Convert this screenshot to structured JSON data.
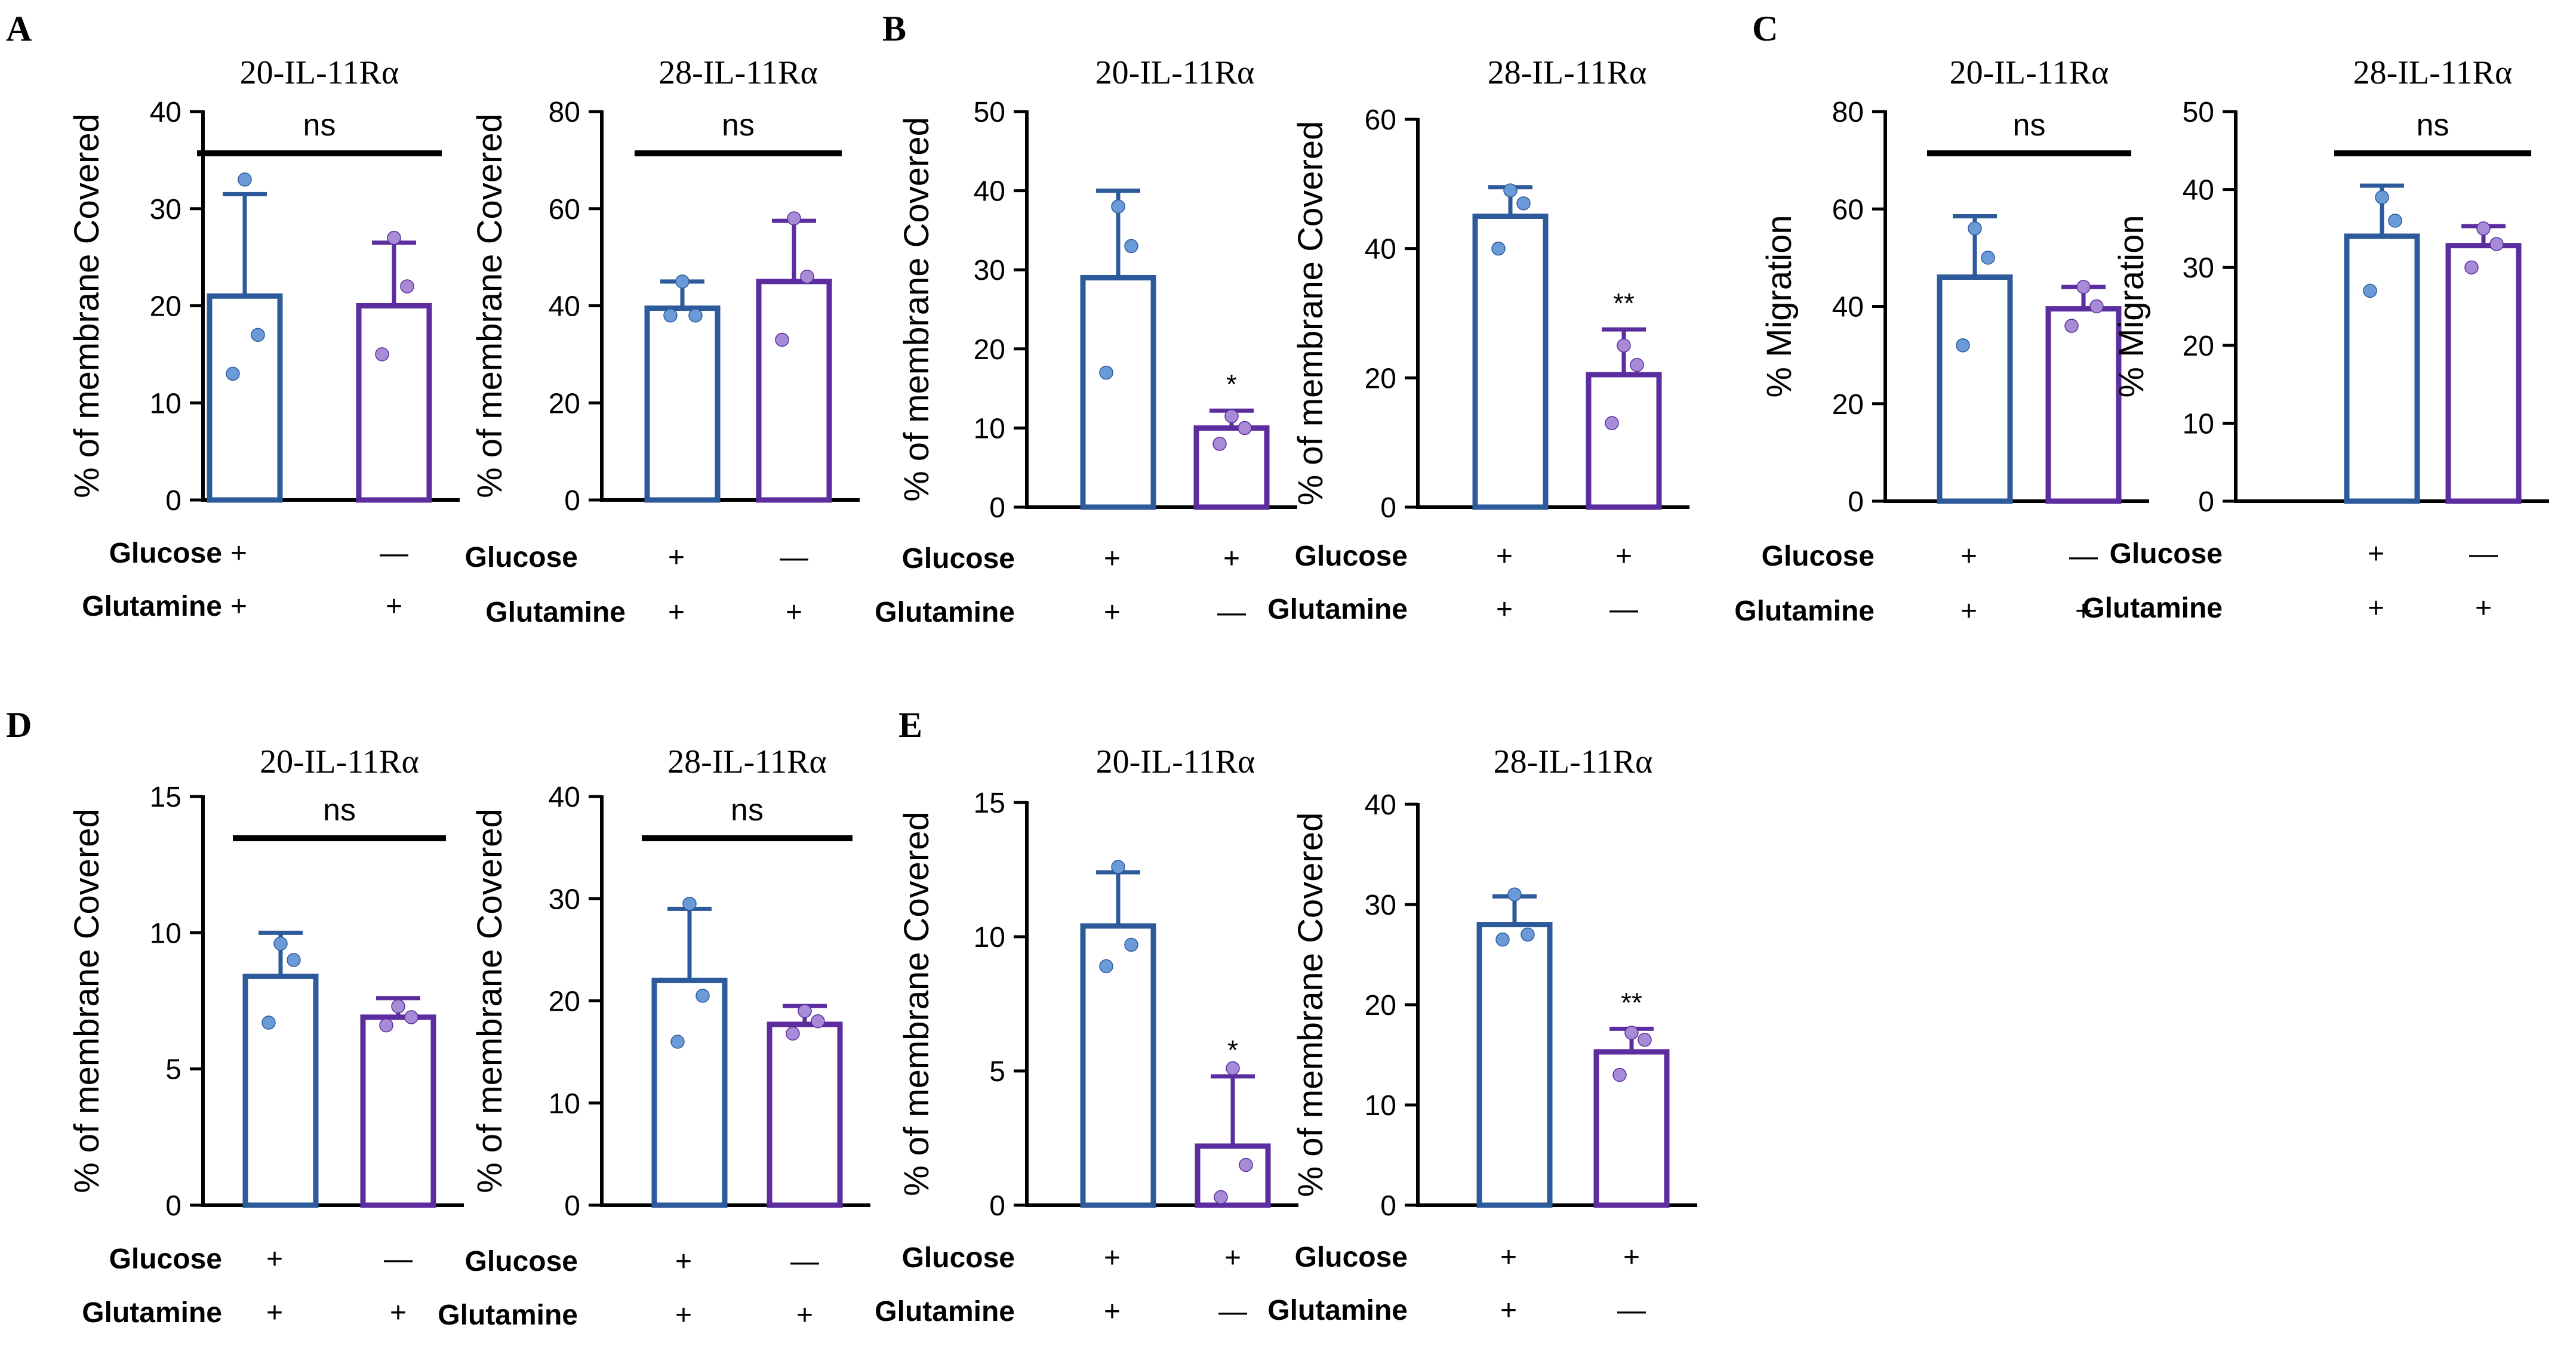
{
  "figure": {
    "colors": {
      "blue": "#2d5a9a",
      "purple": "#5b2d9e",
      "blue_dot": "#6a9bd8",
      "purple_dot": "#a78bd6",
      "axis": "#000000"
    },
    "panel_letters": [
      "A",
      "B",
      "C",
      "D",
      "E"
    ],
    "row_labels": {
      "glucose": "Glucose",
      "glutamine": "Glutamine"
    }
  },
  "chart_data": [
    {
      "id": "A1",
      "panel": "A",
      "type": "bar",
      "title": "20-IL-11Rα",
      "ylabel": "% of membrane Covered",
      "ylim": [
        0,
        40
      ],
      "yticks": [
        0,
        10,
        20,
        30,
        40
      ],
      "categories": [
        "Glucose+ Glutamine+",
        "Glucose− Glutamine+"
      ],
      "glucose": [
        "+",
        "—"
      ],
      "glutamine": [
        "+",
        "+"
      ],
      "series": [
        {
          "name": "Glucose+ Glutamine+",
          "mean": 21,
          "sd": 10.5,
          "points": [
            33,
            17,
            13
          ]
        },
        {
          "name": "Glucose− Glutamine+",
          "mean": 20,
          "sd": 6.5,
          "points": [
            27,
            22,
            15
          ]
        }
      ],
      "significance": "ns"
    },
    {
      "id": "A2",
      "panel": "A",
      "type": "bar",
      "title": "28-IL-11Rα",
      "ylabel": "% of membrane Covered",
      "ylim": [
        0,
        80
      ],
      "yticks": [
        0,
        20,
        40,
        60,
        80
      ],
      "categories": [
        "Glucose+ Glutamine+",
        "Glucose− Glutamine+"
      ],
      "glucose": [
        "+",
        "—"
      ],
      "glutamine": [
        "+",
        "+"
      ],
      "series": [
        {
          "name": "Glucose+ Glutamine+",
          "mean": 39.5,
          "sd": 5.5,
          "points": [
            45,
            38,
            38
          ]
        },
        {
          "name": "Glucose− Glutamine+",
          "mean": 45,
          "sd": 12.5,
          "points": [
            58,
            46,
            33
          ]
        }
      ],
      "significance": "ns"
    },
    {
      "id": "B1",
      "panel": "B",
      "type": "bar",
      "title": "20-IL-11Rα",
      "ylabel": "% of membrane Covered",
      "ylim": [
        0,
        50
      ],
      "yticks": [
        0,
        10,
        20,
        30,
        40,
        50
      ],
      "categories": [
        "Glucose+ Glutamine+",
        "Glucose+ Glutamine−"
      ],
      "glucose": [
        "+",
        "+"
      ],
      "glutamine": [
        "+",
        "—"
      ],
      "series": [
        {
          "name": "Glucose+ Glutamine+",
          "mean": 29,
          "sd": 11,
          "points": [
            38,
            33,
            17
          ]
        },
        {
          "name": "Glucose+ Glutamine−",
          "mean": 10,
          "sd": 2.2,
          "points": [
            11.5,
            10,
            8
          ]
        }
      ],
      "significance": "*"
    },
    {
      "id": "B2",
      "panel": "B",
      "type": "bar",
      "title": "28-IL-11Rα",
      "ylabel": "% of membrane Covered",
      "ylim": [
        0,
        60
      ],
      "yticks": [
        0,
        20,
        40,
        60
      ],
      "categories": [
        "Glucose+ Glutamine+",
        "Glucose+ Glutamine−"
      ],
      "glucose": [
        "+",
        "+"
      ],
      "glutamine": [
        "+",
        "—"
      ],
      "series": [
        {
          "name": "Glucose+ Glutamine+",
          "mean": 45,
          "sd": 4.5,
          "points": [
            49,
            47,
            40
          ]
        },
        {
          "name": "Glucose+ Glutamine−",
          "mean": 20.5,
          "sd": 7,
          "points": [
            25,
            22,
            13
          ]
        }
      ],
      "significance": "**"
    },
    {
      "id": "C1",
      "panel": "C",
      "type": "bar",
      "title": "20-IL-11Rα",
      "ylabel": "% Migration",
      "ylim": [
        0,
        80
      ],
      "yticks": [
        0,
        20,
        40,
        60,
        80
      ],
      "categories": [
        "Glucose+ Glutamine+",
        "Glucose− Glutamine+"
      ],
      "glucose": [
        "+",
        "—"
      ],
      "glutamine": [
        "+",
        "+"
      ],
      "series": [
        {
          "name": "Glucose+ Glutamine+",
          "mean": 46,
          "sd": 12.5,
          "points": [
            56,
            50,
            32
          ]
        },
        {
          "name": "Glucose− Glutamine+",
          "mean": 39.5,
          "sd": 4.5,
          "points": [
            44,
            40,
            36
          ]
        }
      ],
      "significance": "ns"
    },
    {
      "id": "C2",
      "panel": "C",
      "type": "bar",
      "title": "28-IL-11Rα",
      "ylabel": "% Migration",
      "ylim": [
        0,
        50
      ],
      "yticks": [
        0,
        10,
        20,
        30,
        40,
        50
      ],
      "categories": [
        "Glucose+ Glutamine+",
        "Glucose− Glutamine+"
      ],
      "glucose": [
        "+",
        "—"
      ],
      "glutamine": [
        "+",
        "+"
      ],
      "series": [
        {
          "name": "Glucose+ Glutamine+",
          "mean": 34,
          "sd": 6.5,
          "points": [
            39,
            36,
            27
          ]
        },
        {
          "name": "Glucose− Glutamine+",
          "mean": 32.8,
          "sd": 2.5,
          "points": [
            35,
            33,
            30
          ]
        }
      ],
      "significance": "ns"
    },
    {
      "id": "D1",
      "panel": "D",
      "type": "bar",
      "title": "20-IL-11Rα",
      "ylabel": "% of membrane Covered",
      "ylim": [
        0,
        15
      ],
      "yticks": [
        0,
        5,
        10,
        15
      ],
      "categories": [
        "Glucose+ Glutamine+",
        "Glucose− Glutamine+"
      ],
      "glucose": [
        "+",
        "—"
      ],
      "glutamine": [
        "+",
        "+"
      ],
      "series": [
        {
          "name": "Glucose+ Glutamine+",
          "mean": 8.4,
          "sd": 1.6,
          "points": [
            9.6,
            9,
            6.7
          ]
        },
        {
          "name": "Glucose− Glutamine+",
          "mean": 6.9,
          "sd": 0.7,
          "points": [
            7.3,
            6.9,
            6.6
          ]
        }
      ],
      "significance": "ns"
    },
    {
      "id": "D2",
      "panel": "D",
      "type": "bar",
      "title": "28-IL-11Rα",
      "ylabel": "% of membrane Covered",
      "ylim": [
        0,
        40
      ],
      "yticks": [
        0,
        10,
        20,
        30,
        40
      ],
      "categories": [
        "Glucose+ Glutamine+",
        "Glucose− Glutamine+"
      ],
      "glucose": [
        "+",
        "—"
      ],
      "glutamine": [
        "+",
        "+"
      ],
      "series": [
        {
          "name": "Glucose+ Glutamine+",
          "mean": 22,
          "sd": 7,
          "points": [
            29.5,
            20.5,
            16
          ]
        },
        {
          "name": "Glucose− Glutamine+",
          "mean": 17.7,
          "sd": 1.8,
          "points": [
            19,
            18,
            16.8
          ]
        }
      ],
      "significance": "ns"
    },
    {
      "id": "E1",
      "panel": "E",
      "type": "bar",
      "title": "20-IL-11Rα",
      "ylabel": "% of membrane Covered",
      "ylim": [
        0,
        15
      ],
      "yticks": [
        0,
        5,
        10,
        15
      ],
      "categories": [
        "Glucose+ Glutamine+",
        "Glucose+ Glutamine−"
      ],
      "glucose": [
        "+",
        "+"
      ],
      "glutamine": [
        "+",
        "—"
      ],
      "series": [
        {
          "name": "Glucose+ Glutamine+",
          "mean": 10.4,
          "sd": 2,
          "points": [
            12.6,
            9.7,
            8.9
          ]
        },
        {
          "name": "Glucose+ Glutamine−",
          "mean": 2.2,
          "sd": 2.6,
          "points": [
            5.1,
            1.5,
            0.3
          ]
        }
      ],
      "significance": "*"
    },
    {
      "id": "E2",
      "panel": "E",
      "type": "bar",
      "title": "28-IL-11Rα",
      "ylabel": "% of membrane Covered",
      "ylim": [
        0,
        40
      ],
      "yticks": [
        0,
        10,
        20,
        30,
        40
      ],
      "categories": [
        "Glucose+ Glutamine+",
        "Glucose+ Glutamine−"
      ],
      "glucose": [
        "+",
        "+"
      ],
      "glutamine": [
        "+",
        "—"
      ],
      "series": [
        {
          "name": "Glucose+ Glutamine+",
          "mean": 28,
          "sd": 2.8,
          "points": [
            31,
            27,
            26.5
          ]
        },
        {
          "name": "Glucose+ Glutamine−",
          "mean": 15.3,
          "sd": 2.3,
          "points": [
            17.2,
            16.5,
            13
          ]
        }
      ],
      "significance": "**"
    }
  ]
}
